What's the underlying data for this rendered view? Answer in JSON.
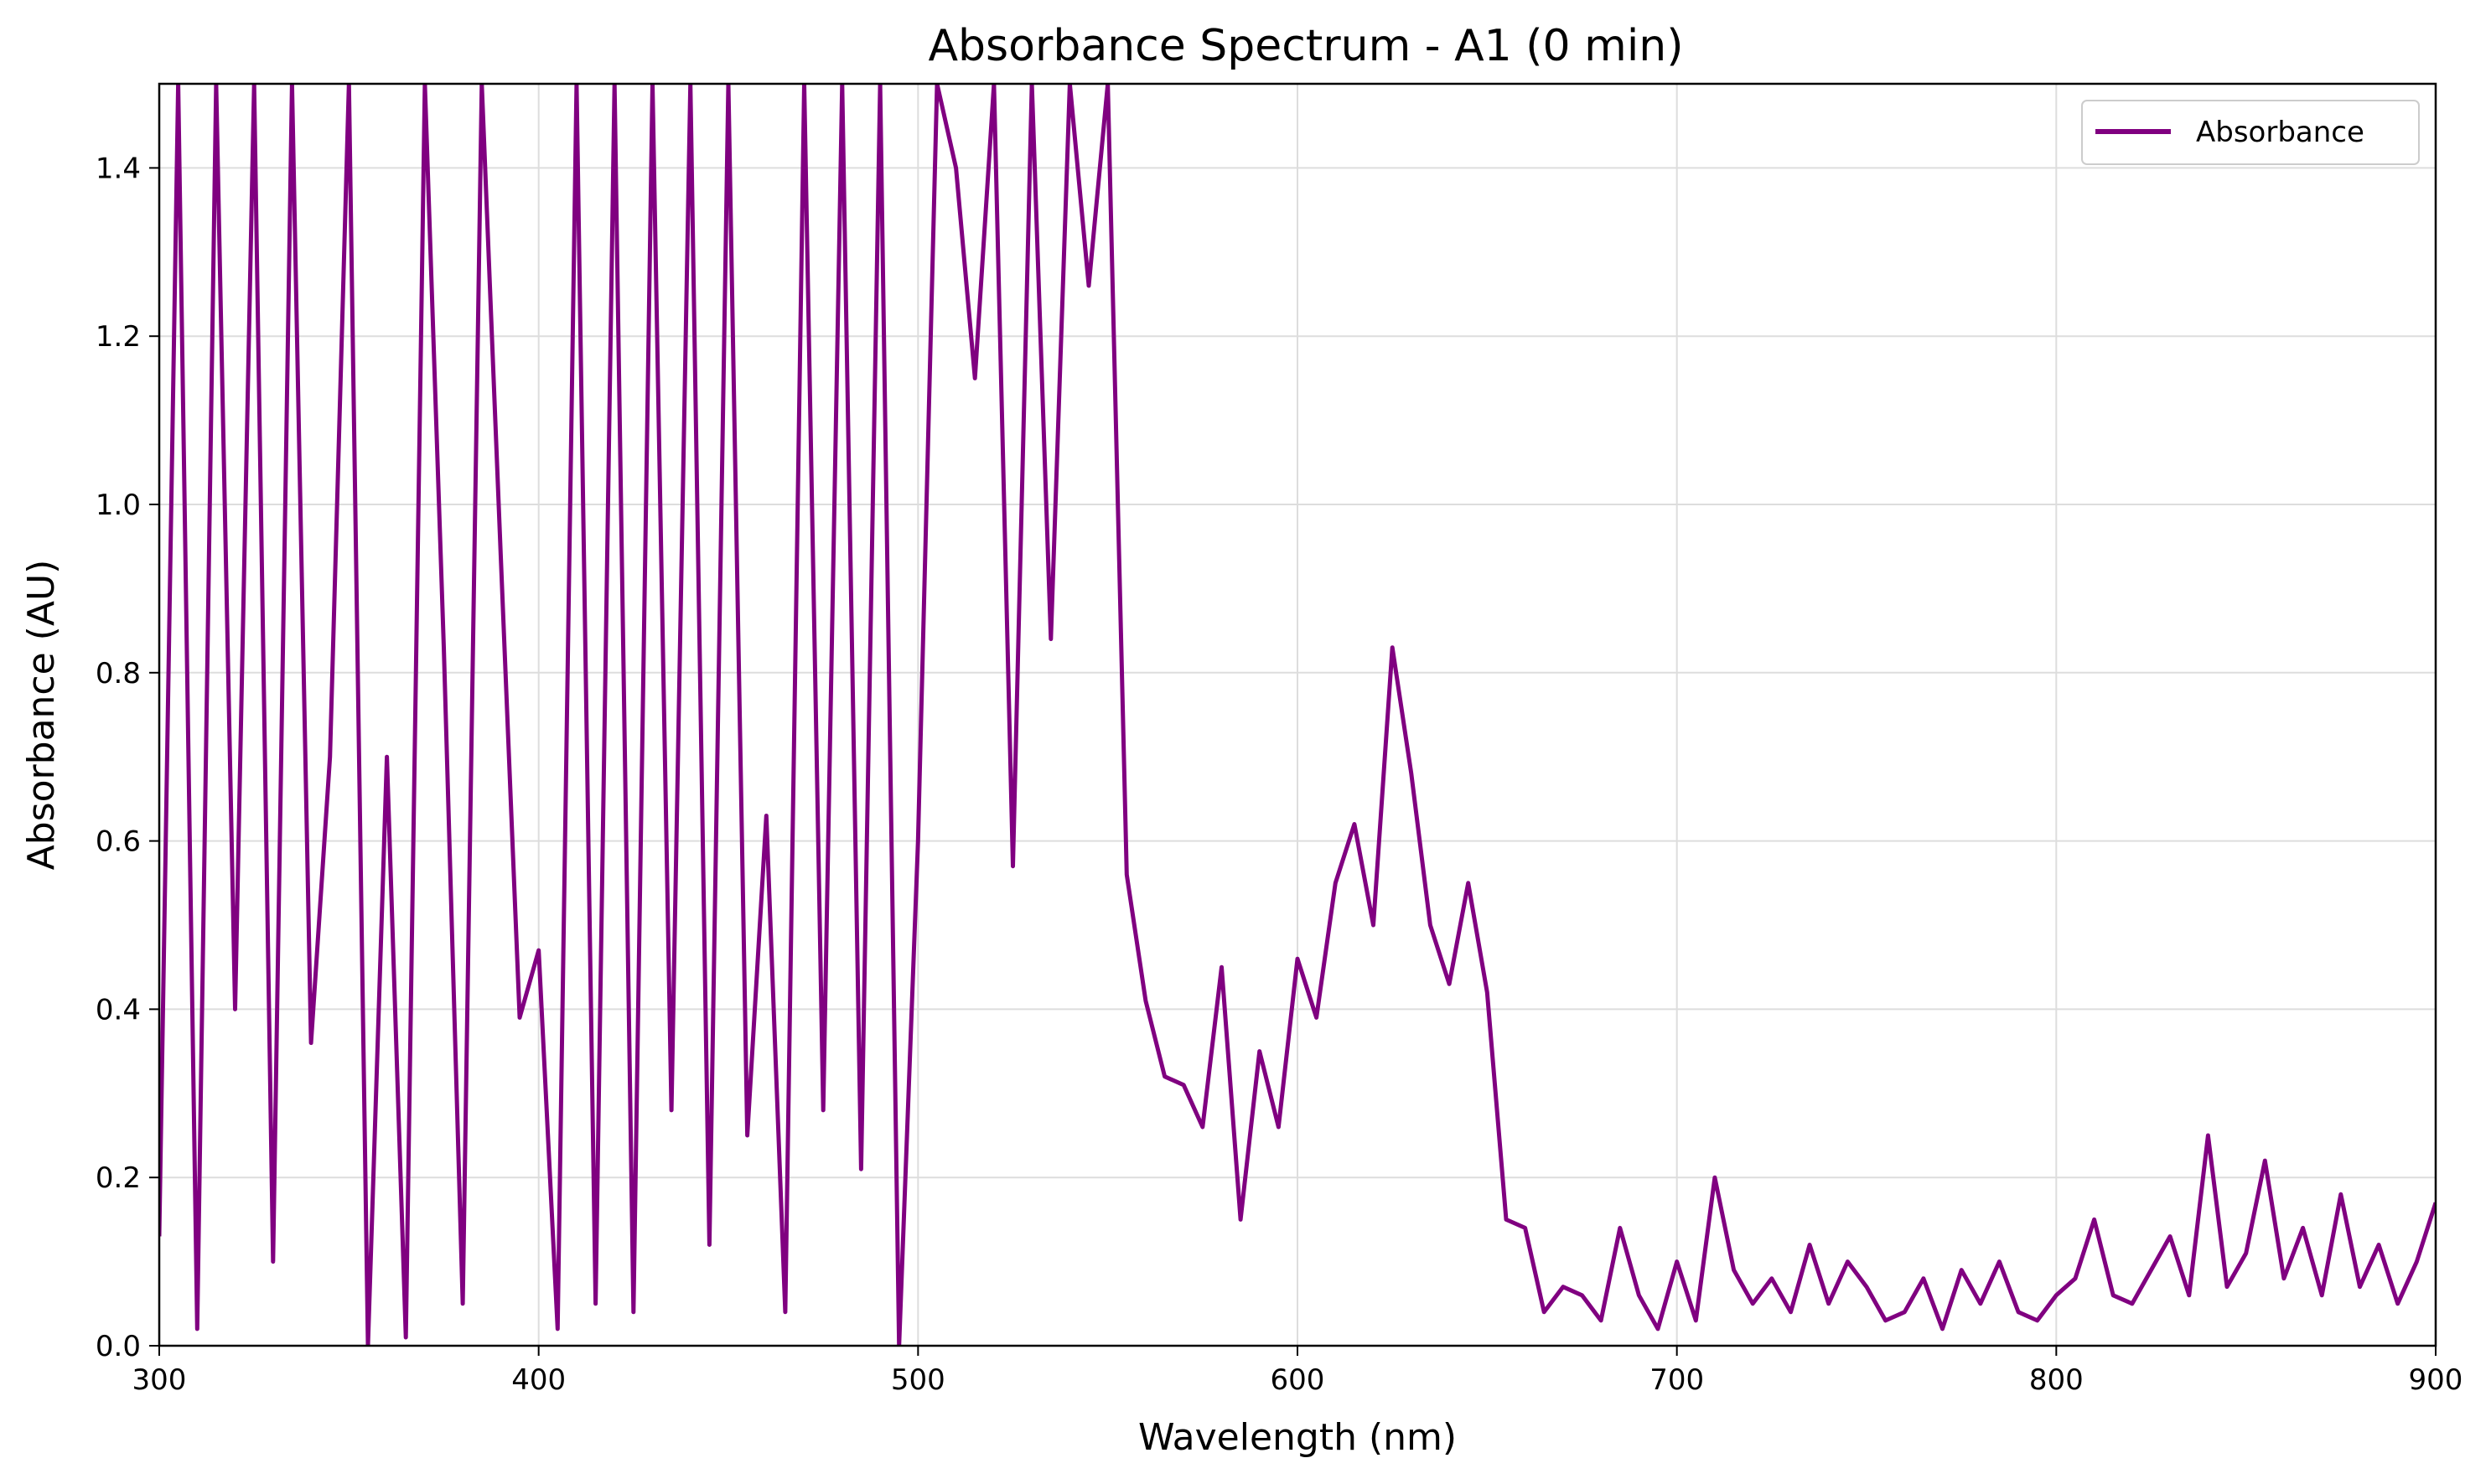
{
  "chart_data": {
    "type": "line",
    "title": "Absorbance Spectrum - A1 (0 min)",
    "xlabel": "Wavelength (nm)",
    "ylabel": "Absorbance (AU)",
    "xlim": [
      300,
      900
    ],
    "ylim": [
      0,
      1.5
    ],
    "xticks": [
      "300",
      "400",
      "500",
      "600",
      "700",
      "800",
      "900"
    ],
    "yticks": [
      "0.0",
      "0.2",
      "0.4",
      "0.6",
      "0.8",
      "1.0",
      "1.2",
      "1.4"
    ],
    "grid": true,
    "legend_position": "top-right",
    "color": "#800080",
    "series": [
      {
        "name": "Absorbance",
        "x": [
          300,
          305,
          310,
          315,
          320,
          325,
          330,
          335,
          340,
          345,
          350,
          355,
          360,
          365,
          370,
          375,
          380,
          385,
          390,
          395,
          400,
          405,
          410,
          415,
          420,
          425,
          430,
          435,
          440,
          445,
          450,
          455,
          460,
          465,
          470,
          475,
          480,
          485,
          490,
          495,
          500,
          505,
          510,
          515,
          520,
          525,
          530,
          535,
          540,
          545,
          550,
          555,
          560,
          565,
          570,
          575,
          580,
          585,
          590,
          595,
          600,
          605,
          610,
          615,
          620,
          625,
          630,
          635,
          640,
          645,
          650,
          655,
          660,
          665,
          670,
          675,
          680,
          685,
          690,
          695,
          700,
          705,
          710,
          715,
          720,
          725,
          730,
          735,
          740,
          745,
          750,
          755,
          760,
          765,
          770,
          775,
          780,
          785,
          790,
          795,
          800,
          805,
          810,
          815,
          820,
          825,
          830,
          835,
          840,
          845,
          850,
          855,
          860,
          865,
          870,
          875,
          880,
          885,
          890,
          895,
          900
        ],
        "y": [
          0.13,
          1.5,
          0.02,
          1.5,
          0.4,
          1.5,
          0.1,
          1.5,
          0.36,
          0.7,
          1.5,
          0.0,
          0.7,
          0.01,
          1.5,
          0.83,
          0.05,
          1.5,
          0.94,
          0.39,
          0.47,
          0.02,
          1.5,
          0.05,
          1.5,
          0.04,
          1.5,
          0.28,
          1.5,
          0.12,
          1.5,
          0.25,
          0.63,
          0.04,
          1.5,
          0.28,
          1.5,
          0.21,
          1.5,
          0.0,
          0.6,
          1.5,
          1.4,
          1.15,
          1.5,
          0.57,
          1.5,
          0.84,
          1.5,
          1.26,
          1.5,
          0.56,
          0.41,
          0.32,
          0.31,
          0.26,
          0.45,
          0.15,
          0.35,
          0.26,
          0.46,
          0.39,
          0.55,
          0.62,
          0.5,
          0.83,
          0.68,
          0.5,
          0.43,
          0.55,
          0.42,
          0.15,
          0.14,
          0.04,
          0.07,
          0.06,
          0.03,
          0.14,
          0.06,
          0.02,
          0.1,
          0.03,
          0.2,
          0.09,
          0.05,
          0.08,
          0.04,
          0.12,
          0.05,
          0.1,
          0.07,
          0.03,
          0.04,
          0.08,
          0.02,
          0.09,
          0.05,
          0.1,
          0.04,
          0.03,
          0.06,
          0.08,
          0.15,
          0.06,
          0.05,
          0.09,
          0.13,
          0.06,
          0.25,
          0.07,
          0.11,
          0.22,
          0.08,
          0.14,
          0.06,
          0.18,
          0.07,
          0.12,
          0.05,
          0.1,
          0.17
        ]
      }
    ]
  }
}
